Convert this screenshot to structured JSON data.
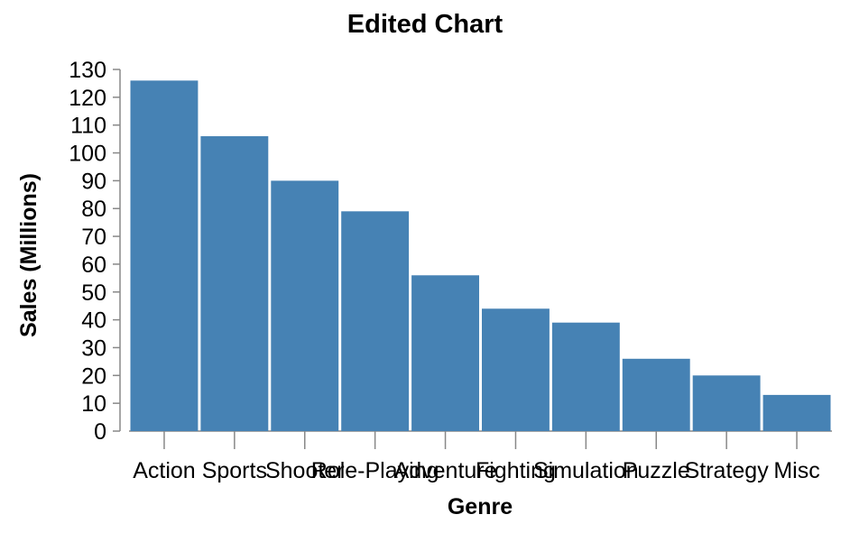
{
  "chart_data": {
    "type": "bar",
    "title": "Edited Chart",
    "xlabel": "Genre",
    "ylabel": "Sales (Millions)",
    "categories": [
      "Action",
      "Sports",
      "Shooter",
      "Role-Playing",
      "Adventure",
      "Fighting",
      "Simulation",
      "Puzzle",
      "Strategy",
      "Misc"
    ],
    "values": [
      126,
      106,
      90,
      79,
      56,
      44,
      39,
      26,
      20,
      13
    ],
    "ylim": [
      0,
      130
    ],
    "yticks": [
      0,
      10,
      20,
      30,
      40,
      50,
      60,
      70,
      80,
      90,
      100,
      110,
      120,
      130
    ],
    "grid": false,
    "bar_color": "#4682b4"
  }
}
